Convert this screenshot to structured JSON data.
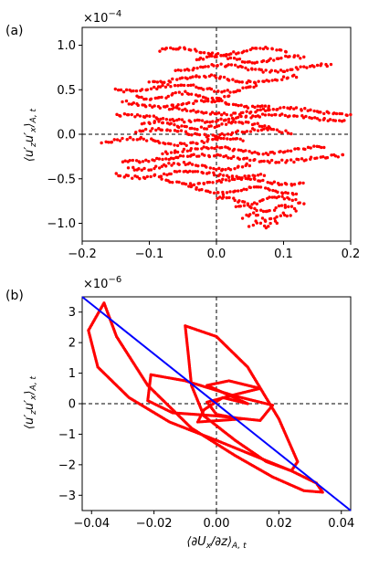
{
  "chart_data": [
    {
      "type": "scatter",
      "panel_label": "(a)",
      "title": "",
      "xlabel": "",
      "ylabel": "⟨u′zu′x⟩A,t",
      "ylabel_main": "⟨u′",
      "ylabel_sub1": "z",
      "ylabel_mid": "u′",
      "ylabel_sub2": "x",
      "ylabel_end": "⟩",
      "ylabel_sub3": "A, t",
      "y_multiplier": "×10⁻⁴",
      "y_multiplier_base": "×10",
      "y_multiplier_exp": "−4",
      "xlim": [
        -0.2,
        0.2
      ],
      "ylim": [
        -1.2,
        1.2
      ],
      "x_ticks": [
        -0.2,
        -0.1,
        0.0,
        0.1,
        0.2
      ],
      "x_tick_labels": [
        "−0.2",
        "−0.1",
        "0.0",
        "0.1",
        "0.2"
      ],
      "y_ticks": [
        -1.0,
        -0.5,
        0.0,
        0.5,
        1.0
      ],
      "y_tick_labels": [
        "−1.0",
        "−0.5",
        "0.0",
        "0.5",
        "1.0"
      ],
      "grid": false,
      "reference_lines": [
        "x = 0 dashed",
        "y = 0 dashed"
      ],
      "marker_color": "#ff0000",
      "series": [
        {
          "band_rows": [
            {
              "y": 0.93,
              "x": [
                -0.085,
                0.105
              ]
            },
            {
              "y": 0.84,
              "x": [
                -0.03,
                0.13
              ]
            },
            {
              "y": 0.74,
              "x": [
                -0.06,
                0.17
              ]
            },
            {
              "y": 0.62,
              "x": [
                -0.1,
                0.12
              ]
            },
            {
              "y": 0.52,
              "x": [
                -0.15,
                0.06
              ]
            },
            {
              "y": 0.43,
              "x": [
                -0.12,
                0.02
              ]
            },
            {
              "y": 0.34,
              "x": [
                -0.14,
                0.08
              ]
            },
            {
              "y": 0.26,
              "x": [
                -0.07,
                0.2
              ]
            },
            {
              "y": 0.18,
              "x": [
                -0.15,
                0.19
              ]
            },
            {
              "y": 0.1,
              "x": [
                -0.11,
                0.08
              ]
            },
            {
              "y": 0.02,
              "x": [
                -0.12,
                0.11
              ]
            },
            {
              "y": -0.08,
              "x": [
                -0.17,
                0.04
              ]
            },
            {
              "y": -0.18,
              "x": [
                -0.08,
                0.16
              ]
            },
            {
              "y": -0.27,
              "x": [
                -0.14,
                0.19
              ]
            },
            {
              "y": -0.36,
              "x": [
                -0.13,
                0.05
              ]
            },
            {
              "y": -0.45,
              "x": [
                -0.15,
                0.07
              ]
            },
            {
              "y": -0.53,
              "x": [
                -0.08,
                0.13
              ]
            },
            {
              "y": -0.63,
              "x": [
                -0.04,
                0.12
              ]
            },
            {
              "y": -0.74,
              "x": [
                0.0,
                0.13
              ]
            },
            {
              "y": -0.84,
              "x": [
                0.03,
                0.12
              ]
            },
            {
              "y": -0.93,
              "x": [
                0.04,
                0.11
              ]
            },
            {
              "y": -1.02,
              "x": [
                0.05,
                0.09
              ]
            }
          ]
        }
      ]
    },
    {
      "type": "scatter",
      "panel_label": "(b)",
      "title": "",
      "xlabel": "⟨∂Ux/∂z⟩A,t",
      "xlabel_main": "⟨∂U",
      "xlabel_sub1": "x",
      "xlabel_end": "/∂z⟩",
      "xlabel_sub2": "A, t",
      "ylabel": "⟨u′zu′x⟩A,t",
      "ylabel_main": "⟨u′",
      "ylabel_sub1": "z",
      "ylabel_mid": "u′",
      "ylabel_sub2": "x",
      "ylabel_end": "⟩",
      "ylabel_sub3": "A, t",
      "y_multiplier": "×10⁻⁶",
      "y_multiplier_base": "×10",
      "y_multiplier_exp": "−6",
      "xlim": [
        -0.043,
        0.043
      ],
      "ylim": [
        -3.5,
        3.5
      ],
      "x_ticks": [
        -0.04,
        -0.02,
        0.0,
        0.02,
        0.04
      ],
      "x_tick_labels": [
        "−0.04",
        "−0.02",
        "0.00",
        "0.02",
        "0.04"
      ],
      "y_ticks": [
        -3,
        -2,
        -1,
        0,
        1,
        2,
        3
      ],
      "y_tick_labels": [
        "−3",
        "−2",
        "−1",
        "0",
        "1",
        "2",
        "3"
      ],
      "grid": false,
      "reference_lines": [
        "x = 0 dashed",
        "y = 0 dashed"
      ],
      "marker_color": "#ff0000",
      "fit_line": {
        "color": "#0000ff",
        "x": [
          -0.043,
          0.043
        ],
        "y": [
          3.5,
          -3.5
        ]
      },
      "series": [
        {
          "loops": [
            {
              "x": [
                -0.036,
                -0.041,
                -0.038,
                -0.028,
                -0.015,
                0.0,
                0.012,
                0.024,
                0.032,
                0.034,
                0.028,
                0.018,
                0.006,
                -0.008,
                -0.022,
                -0.032,
                -0.036
              ],
              "y": [
                3.3,
                2.4,
                1.2,
                0.2,
                -0.6,
                -1.2,
                -1.7,
                -2.2,
                -2.6,
                -2.9,
                -2.85,
                -2.4,
                -1.7,
                -0.8,
                0.6,
                2.2,
                3.3
              ]
            },
            {
              "x": [
                -0.01,
                0.0,
                0.01,
                0.02,
                0.026,
                0.024,
                0.016,
                0.006,
                -0.004,
                -0.008,
                -0.009,
                -0.01
              ],
              "y": [
                2.55,
                2.2,
                1.2,
                -0.5,
                -1.9,
                -2.2,
                -1.9,
                -1.2,
                -0.4,
                0.6,
                1.6,
                2.55
              ]
            },
            {
              "x": [
                -0.021,
                -0.01,
                0.006,
                0.018,
                0.014,
                0.0,
                -0.014,
                -0.022,
                -0.021
              ],
              "y": [
                0.95,
                0.75,
                0.25,
                -0.05,
                -0.55,
                -0.4,
                -0.3,
                0.1,
                0.95
              ]
            },
            {
              "x": [
                -0.003,
                0.004,
                0.014,
                0.006,
                -0.003,
                0.0,
                0.008,
                -0.006,
                -0.004,
                0.002,
                0.01,
                -0.003
              ],
              "y": [
                0.6,
                0.75,
                0.5,
                0.3,
                0.05,
                -0.35,
                -0.5,
                -0.6,
                -0.2,
                0.2,
                0.0,
                0.6
              ]
            }
          ]
        }
      ]
    }
  ]
}
